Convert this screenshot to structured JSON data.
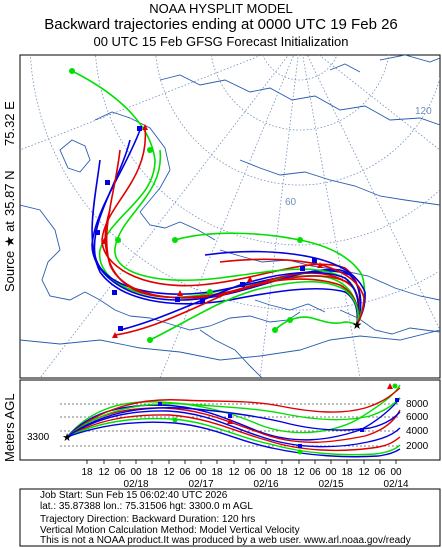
{
  "header": {
    "model": "NOAA HYSPLIT MODEL",
    "title": "Backward trajectories ending at 0000 UTC 19 Feb 26",
    "subtitle": "00 UTC 15 Feb    GFSG  Forecast Initialization"
  },
  "side_labels": {
    "source": "Source ★ at",
    "lat": "35.87 N",
    "lon": "75.32 E",
    "vertical_axis": "Meters AGL"
  },
  "map": {
    "grid_labels": [
      "120",
      "60"
    ],
    "source_marker": "star"
  },
  "vertical_panel": {
    "start_height_label": "3300",
    "y_ticks": [
      "8000",
      "6000",
      "4000",
      "2000"
    ],
    "time_tick_labels": [
      "18",
      "12",
      "06",
      "00",
      "18",
      "12",
      "06",
      "00",
      "18",
      "12",
      "06",
      "00",
      "18",
      "12",
      "06",
      "00",
      "18",
      "12",
      "06",
      "00"
    ],
    "date_labels": [
      "02/18",
      "02/17",
      "02/16",
      "02/15",
      "02/14"
    ]
  },
  "footer": {
    "job_start": "Job Start: Sun Feb 15 06:02:40 UTC 2026",
    "location": "lat.: 35.87388   lon.: 75.31506    hgt: 3300.0 m AGL",
    "direction": "Trajectory Direction: Backward       Duration: 120 hrs",
    "vertical_method": "Vertical Motion Calculation Method: Model Vertical Velocity",
    "disclaimer": "This is not a NOAA product.It was produced by a web user. www.arl.noaa.gov/ready"
  },
  "colors": {
    "red": "#e00000",
    "blue": "#0000e0",
    "green": "#00e000",
    "map_lines": "#2a5db0",
    "grid": "#6e8fbf"
  }
}
